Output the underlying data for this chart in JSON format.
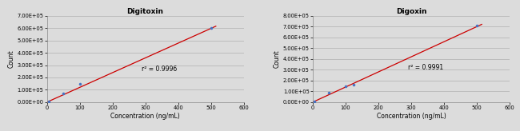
{
  "digitoxin": {
    "title": "Digitoxin",
    "x": [
      5,
      50,
      100,
      500
    ],
    "y": [
      4000,
      72000,
      145000,
      600000
    ],
    "r2": "r² = 0.9996",
    "xlim": [
      0,
      600
    ],
    "ylim": [
      0,
      700000.0
    ],
    "yticks": [
      0,
      100000.0,
      200000.0,
      300000.0,
      400000.0,
      500000.0,
      600000.0,
      700000.0
    ],
    "xticks": [
      0,
      100,
      200,
      300,
      400,
      500,
      600
    ],
    "r2_x": 290,
    "r2_y": 270000,
    "line_x": [
      0,
      515
    ],
    "line_y": [
      0,
      615000
    ]
  },
  "digoxin": {
    "title": "Digoxin",
    "x": [
      5,
      50,
      100,
      125,
      500
    ],
    "y": [
      4000,
      85000,
      148000,
      165000,
      710000
    ],
    "r2": "r² = 0.9991",
    "xlim": [
      0,
      600
    ],
    "ylim": [
      0,
      800000.0
    ],
    "yticks": [
      0,
      100000.0,
      200000.0,
      300000.0,
      400000.0,
      500000.0,
      600000.0,
      700000.0,
      800000.0
    ],
    "xticks": [
      0,
      100,
      200,
      300,
      400,
      500,
      600
    ],
    "r2_x": 290,
    "r2_y": 320000,
    "line_x": [
      0,
      515
    ],
    "line_y": [
      0,
      720000
    ]
  },
  "dot_color": "#4472C4",
  "line_color": "#CC0000",
  "bg_color": "#DCDCDC",
  "grid_color": "#B8B8B8",
  "xlabel": "Concentration (ng/mL)",
  "ylabel": "Count",
  "title_fontsize": 6.5,
  "label_fontsize": 5.5,
  "tick_fontsize": 4.8,
  "annot_fontsize": 5.5
}
